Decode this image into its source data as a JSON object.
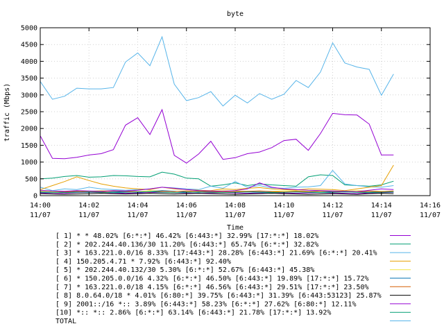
{
  "chart_data": {
    "type": "line",
    "title": "byte",
    "xlabel": "Time",
    "ylabel": "traffic (Mbps)",
    "ylim": [
      0,
      5000
    ],
    "yticks": [
      0,
      500,
      1000,
      1500,
      2000,
      2500,
      3000,
      3500,
      4000,
      4500,
      5000
    ],
    "xlim_minutes": [
      0,
      16
    ],
    "xticks": [
      {
        "t": 0,
        "time": "14:00",
        "date": "11/07"
      },
      {
        "t": 2,
        "time": "14:02",
        "date": "11/07"
      },
      {
        "t": 4,
        "time": "14:04",
        "date": "11/07"
      },
      {
        "t": 6,
        "time": "14:06",
        "date": "11/07"
      },
      {
        "t": 8,
        "time": "14:08",
        "date": "11/07"
      },
      {
        "t": 10,
        "time": "14:10",
        "date": "11/07"
      },
      {
        "t": 12,
        "time": "14:12",
        "date": "11/07"
      },
      {
        "t": 14,
        "time": "14:14",
        "date": "11/07"
      },
      {
        "t": 16,
        "time": "14:16",
        "date": "11/07"
      }
    ],
    "x_minutes": [
      0,
      0.5,
      1,
      1.5,
      2,
      2.5,
      3,
      3.5,
      4,
      4.5,
      5,
      5.5,
      6,
      6.5,
      7,
      7.5,
      8,
      8.5,
      9,
      9.5,
      10,
      10.5,
      11,
      11.5,
      12,
      12.5,
      13,
      13.5,
      14,
      14.5
    ],
    "series": [
      {
        "name": "[ 1] * * 48.02%  [6:*:*] 46.42% [6:443:*] 32.99% [17:*:*] 18.02%",
        "color": "#9400d3",
        "values": [
          80,
          60,
          70,
          90,
          100,
          90,
          80,
          70,
          80,
          90,
          100,
          90,
          80,
          70,
          80,
          90,
          80,
          70,
          80,
          90,
          80,
          70,
          80,
          90,
          80,
          70,
          60,
          80,
          90,
          100
        ]
      },
      {
        "name": "[ 2] * 202.244.40.136/30 11.20%  [6:443:*] 65.74% [6:*:*] 32.82%",
        "color": "#009e73",
        "values": [
          500,
          520,
          570,
          600,
          550,
          560,
          600,
          590,
          570,
          560,
          700,
          640,
          520,
          500,
          280,
          320,
          380,
          300,
          350,
          320,
          300,
          280,
          560,
          620,
          600,
          320,
          300,
          280,
          320,
          430
        ]
      },
      {
        "name": "[ 3] * 163.221.0.0/16 8.33%  [17:443:*] 28.28% [6:443:*] 21.69% [6:*:*] 20.41%",
        "color": "#56b4e9",
        "values": [
          250,
          150,
          200,
          180,
          250,
          200,
          180,
          160,
          180,
          200,
          250,
          230,
          200,
          180,
          280,
          220,
          420,
          250,
          300,
          230,
          220,
          250,
          260,
          300,
          750,
          350,
          300,
          260,
          250,
          300
        ]
      },
      {
        "name": "[ 4] 150.205.4.71 * 7.92%  [6:443:*] 92.40%",
        "color": "#e69f00",
        "values": [
          180,
          300,
          420,
          560,
          450,
          350,
          280,
          230,
          200,
          180,
          250,
          200,
          180,
          160,
          150,
          200,
          180,
          220,
          240,
          200,
          180,
          170,
          200,
          190,
          180,
          150,
          200,
          250,
          300,
          910
        ]
      },
      {
        "name": "[ 5] * 202.244.40.132/30 5.30%  [6:*:*] 52.67% [6:443:*] 45.38%",
        "color": "#f0e442",
        "values": [
          150,
          120,
          130,
          140,
          130,
          150,
          140,
          130,
          120,
          150,
          140,
          130,
          120,
          140,
          130,
          150,
          140,
          130,
          120,
          130,
          140,
          150,
          130,
          120,
          140,
          130,
          150,
          140,
          130,
          120
        ]
      },
      {
        "name": "[ 6] * 150.205.0.0/16 4.32%  [6:*:*] 46.50% [6:443:*] 19.89% [17:*:*] 15.72%",
        "color": "#0072b2",
        "values": [
          100,
          90,
          120,
          110,
          100,
          130,
          120,
          110,
          100,
          120,
          150,
          130,
          110,
          100,
          120,
          110,
          100,
          120,
          130,
          110,
          100,
          120,
          110,
          100,
          120,
          130,
          110,
          100,
          120,
          110
        ]
      },
      {
        "name": "[ 7] * 163.221.0.0/18 4.15%  [6:*:*] 46.56% [6:443:*] 29.51% [17:*:*] 23.50%",
        "color": "#d55e00",
        "values": [
          120,
          100,
          110,
          130,
          120,
          110,
          140,
          130,
          120,
          110,
          130,
          120,
          140,
          130,
          120,
          110,
          120,
          130,
          140,
          120,
          110,
          130,
          120,
          140,
          130,
          120,
          110,
          130,
          120,
          140
        ]
      },
      {
        "name": "[ 8] 8.0.64.0/18 * 4.01%  [6:80:*] 39.75% [6:443:*] 31.39% [6:443:53123] 25.87%",
        "color": "#000000",
        "values": [
          60,
          50,
          40,
          50,
          60,
          70,
          60,
          50,
          60,
          70,
          60,
          50,
          60,
          70,
          60,
          50,
          40,
          50,
          60,
          70,
          60,
          50,
          40,
          50,
          60,
          50,
          40,
          60,
          70,
          60
        ]
      },
      {
        "name": "[ 9] 2001::/16 *:: 3.89%  [6:443:*] 58.23% [6:*:*] 27.62% [6:80:*] 12.11%",
        "color": "#9400d3",
        "values": [
          160,
          140,
          130,
          150,
          140,
          130,
          150,
          140,
          160,
          200,
          250,
          220,
          180,
          150,
          140,
          130,
          150,
          200,
          380,
          250,
          200,
          180,
          160,
          150,
          140,
          130,
          120,
          160,
          200,
          180
        ]
      },
      {
        "name": "[10] *:: *:: 2.86%  [6:*:*] 63.14% [6:443:*] 21.78% [17:*:*] 13.92%",
        "color": "#009e73",
        "values": [
          110,
          100,
          90,
          100,
          110,
          100,
          90,
          100,
          110,
          120,
          100,
          90,
          100,
          110,
          100,
          90,
          100,
          110,
          100,
          90,
          100,
          110,
          100,
          90,
          100,
          110,
          100,
          90,
          100,
          110
        ]
      },
      {
        "name": "TOTAL",
        "color": "#56b4e9",
        "values": [
          3400,
          2870,
          2960,
          3200,
          3180,
          3180,
          3220,
          3980,
          4250,
          3870,
          4730,
          3320,
          2830,
          2920,
          3100,
          2670,
          2990,
          2760,
          3040,
          2870,
          3020,
          3430,
          3220,
          3680,
          4550,
          3950,
          3830,
          3760,
          2990,
          3620
        ]
      },
      {
        "name": "",
        "color": "#9400d3",
        "values": [
          1780,
          1110,
          1100,
          1140,
          1210,
          1250,
          1370,
          2100,
          2320,
          1820,
          2560,
          1200,
          970,
          1240,
          1620,
          1080,
          1130,
          1250,
          1300,
          1430,
          1640,
          1680,
          1350,
          1850,
          2450,
          2410,
          2400,
          2130,
          1210,
          1210
        ]
      }
    ]
  }
}
